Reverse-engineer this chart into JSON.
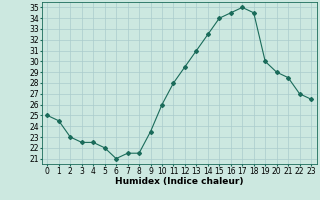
{
  "x": [
    0,
    1,
    2,
    3,
    4,
    5,
    6,
    7,
    8,
    9,
    10,
    11,
    12,
    13,
    14,
    15,
    16,
    17,
    18,
    19,
    20,
    21,
    22,
    23
  ],
  "y": [
    25.0,
    24.5,
    23.0,
    22.5,
    22.5,
    22.0,
    21.0,
    21.5,
    21.5,
    23.5,
    26.0,
    28.0,
    29.5,
    31.0,
    32.5,
    34.0,
    34.5,
    35.0,
    34.5,
    30.0,
    29.0,
    28.5,
    27.0,
    26.5
  ],
  "line_color": "#1a6b5a",
  "marker": "D",
  "marker_size": 2,
  "bg_color": "#cce8e0",
  "grid_color": "#aacccc",
  "xlabel": "Humidex (Indice chaleur)",
  "xlim": [
    -0.5,
    23.5
  ],
  "ylim": [
    20.5,
    35.5
  ],
  "yticks": [
    21,
    22,
    23,
    24,
    25,
    26,
    27,
    28,
    29,
    30,
    31,
    32,
    33,
    34,
    35
  ],
  "xticks": [
    0,
    1,
    2,
    3,
    4,
    5,
    6,
    7,
    8,
    9,
    10,
    11,
    12,
    13,
    14,
    15,
    16,
    17,
    18,
    19,
    20,
    21,
    22,
    23
  ],
  "tick_label_fontsize": 5.5,
  "xlabel_fontsize": 6.5
}
